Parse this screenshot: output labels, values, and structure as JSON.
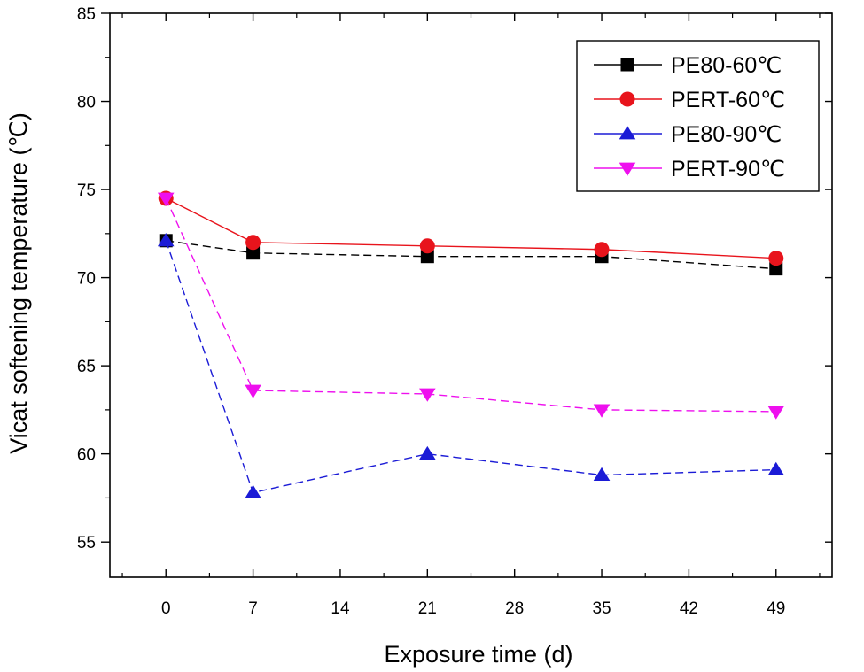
{
  "chart_data": {
    "type": "line",
    "title": "",
    "xlabel": "Exposure time (d)",
    "ylabel": "Vicat softening temperature (℃)",
    "xlim": [
      -4.5,
      53.5
    ],
    "ylim": [
      53,
      85
    ],
    "x_ticks": [
      0,
      7,
      14,
      21,
      28,
      35,
      42,
      49
    ],
    "y_ticks": [
      55,
      60,
      65,
      70,
      75,
      80,
      85
    ],
    "grid": false,
    "legend_position": "top-right",
    "series": [
      {
        "name": "PE80-60℃",
        "color": "#000000",
        "marker": "square",
        "dash": "dashed",
        "x": [
          0,
          7,
          21,
          35,
          49
        ],
        "values": [
          72.1,
          71.4,
          71.2,
          71.2,
          70.5
        ]
      },
      {
        "name": "PERT-60℃",
        "color": "#e8141c",
        "marker": "circle",
        "dash": "solid",
        "x": [
          0,
          7,
          21,
          35,
          49
        ],
        "values": [
          74.5,
          72.0,
          71.8,
          71.6,
          71.1
        ]
      },
      {
        "name": "PE80-90℃",
        "color": "#1b1bd6",
        "marker": "triangle-up",
        "dash": "dashed",
        "x": [
          0,
          7,
          21,
          35,
          49
        ],
        "values": [
          72.1,
          57.8,
          60.0,
          58.8,
          59.1
        ]
      },
      {
        "name": "PERT-90℃",
        "color": "#ee10ee",
        "marker": "triangle-down",
        "dash": "dashed",
        "x": [
          0,
          7,
          21,
          35,
          49
        ],
        "values": [
          74.5,
          63.6,
          63.4,
          62.5,
          62.4
        ]
      }
    ]
  }
}
